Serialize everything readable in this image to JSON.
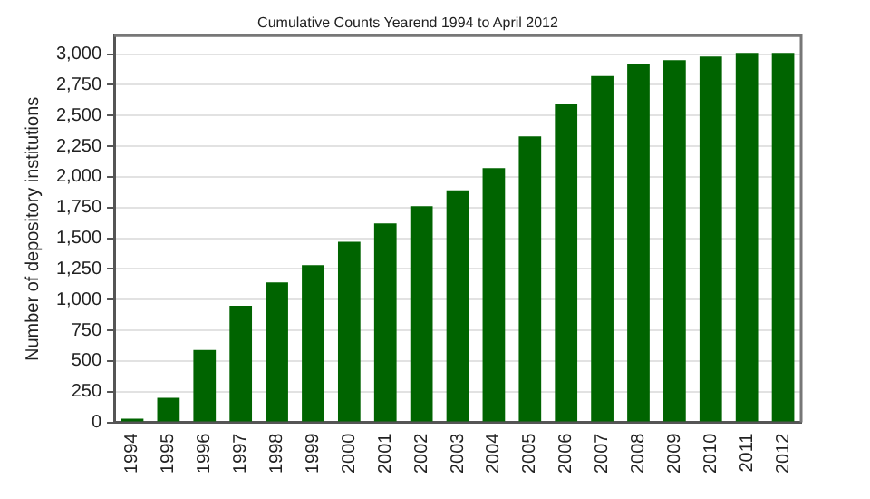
{
  "chart_data": {
    "type": "bar",
    "title": "Cumulative Counts Yearend 1994 to April 2012",
    "ylabel": "Number of depository institutions",
    "categories": [
      "1994",
      "1995",
      "1996",
      "1997",
      "1998",
      "1999",
      "2000",
      "2001",
      "2002",
      "2003",
      "2004",
      "2005",
      "2006",
      "2007",
      "2008",
      "2009",
      "2010",
      "2011",
      "2012"
    ],
    "values": [
      30,
      200,
      590,
      950,
      1140,
      1280,
      1470,
      1620,
      1760,
      1890,
      2070,
      2330,
      2590,
      2820,
      2920,
      2950,
      2980,
      3010,
      3010
    ],
    "color": "#006400",
    "ylim": [
      0,
      3150
    ],
    "yticks": [
      0,
      {
        "value": 250,
        "label": "250"
      },
      {
        "value": 500,
        "label": "500"
      },
      {
        "value": 750,
        "label": "750"
      },
      {
        "value": 1000,
        "label": "1,000"
      },
      {
        "value": 1250,
        "label": "1,250"
      },
      {
        "value": 1500,
        "label": "1,500"
      },
      {
        "value": 1750,
        "label": "1,750"
      },
      {
        "value": 2000,
        "label": "2,000"
      },
      {
        "value": 2250,
        "label": "2,250"
      },
      {
        "value": 2500,
        "label": "2,500"
      },
      {
        "value": 2750,
        "label": "2,750"
      },
      {
        "value": 3000,
        "label": "3,000"
      }
    ],
    "grid": "y"
  }
}
